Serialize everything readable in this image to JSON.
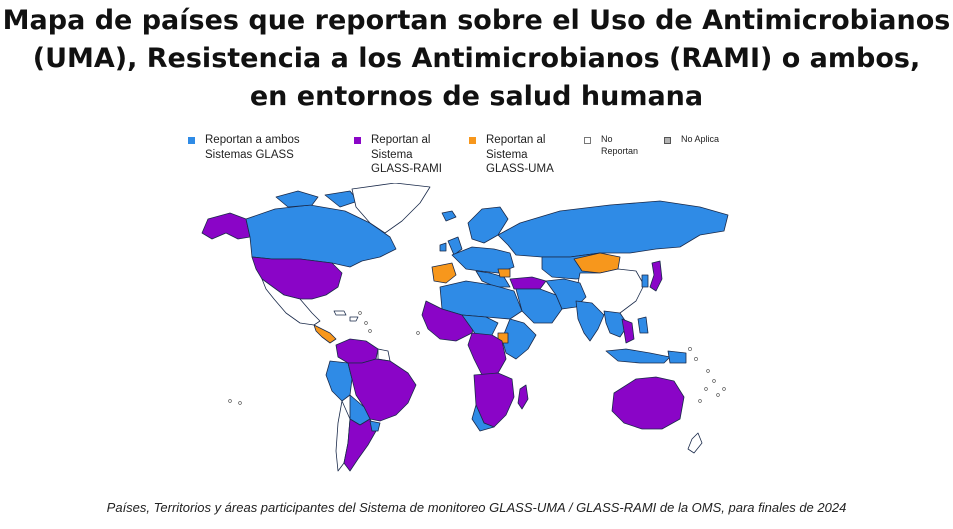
{
  "title": {
    "line1": "Mapa de países que reportan sobre el Uso de Antimicrobianos",
    "line2": "(UMA), Resistencia a los Antimicrobianos (RAMI) o ambos,",
    "line3": "en entornos de salud humana"
  },
  "legend": [
    {
      "label": "Reportan a ambos\nSistemas GLASS",
      "color": "#2f8be6"
    },
    {
      "label": "Reportan al\nSistema\nGLASS-RAMI",
      "color": "#8a05c7"
    },
    {
      "label": "Reportan al\nSistema\nGLASS-UMA",
      "color": "#f7971c"
    },
    {
      "label": "No\nReportan",
      "color": "#ffffff"
    },
    {
      "label": "No Aplica",
      "color": "#b3b3b3"
    }
  ],
  "caption": "Países, Territorios y áreas participantes del Sistema de monitoreo GLASS-UMA / GLASS-RAMI de la OMS, para finales de 2024"
}
